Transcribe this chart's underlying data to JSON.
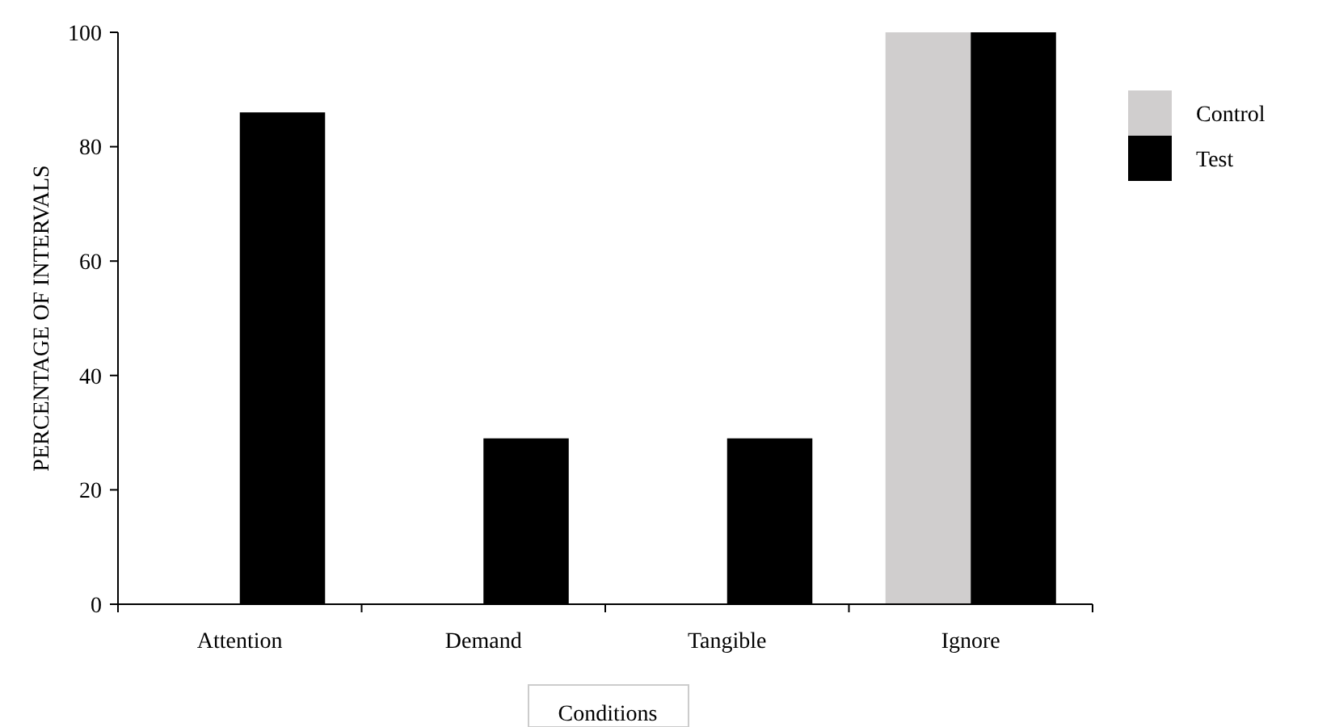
{
  "chart_data": {
    "type": "bar",
    "ylabel": "PERCENTAGE OF INTERVALS",
    "xlabel": "Conditions",
    "categories": [
      "Attention",
      "Demand",
      "Tangible",
      "Ignore"
    ],
    "series": [
      {
        "name": "Control",
        "color": "#d0cece",
        "values": [
          0,
          0,
          0,
          100
        ]
      },
      {
        "name": "Test",
        "color": "#000000",
        "values": [
          86,
          29,
          29,
          100
        ]
      }
    ],
    "ylim": [
      0,
      100
    ],
    "yticks": [
      0,
      20,
      40,
      60,
      80,
      100
    ],
    "grid": false,
    "legend": "right"
  }
}
